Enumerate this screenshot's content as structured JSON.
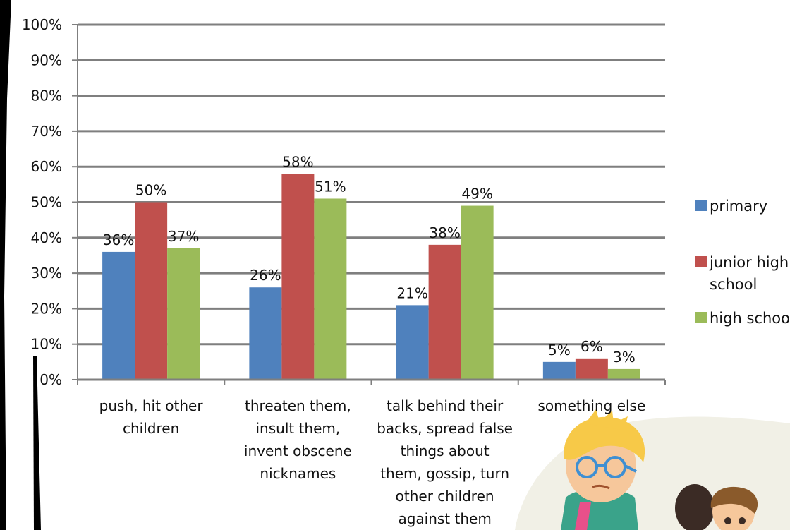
{
  "chart_data": {
    "type": "bar",
    "title": "",
    "xlabel": "",
    "ylabel": "",
    "ylim": [
      0,
      100
    ],
    "y_ticks": [
      0,
      10,
      20,
      30,
      40,
      50,
      60,
      70,
      80,
      90,
      100
    ],
    "y_tick_format": "percent",
    "grid": true,
    "legend_position": "right",
    "categories": [
      [
        "push, hit other",
        "children"
      ],
      [
        "threaten them,",
        "insult them,",
        "invent obscene",
        "nicknames"
      ],
      [
        "talk behind their",
        "backs, spread false",
        "things about",
        "them, gossip, turn",
        "other children",
        "against them"
      ],
      [
        "something else"
      ]
    ],
    "series": [
      {
        "name": "primary",
        "color": "#4f81bd",
        "values": [
          36,
          26,
          21,
          5
        ],
        "labels": [
          "36%",
          "26%",
          "21%",
          "5%"
        ]
      },
      {
        "name": "junior high school",
        "legend_lines": [
          "junior high",
          "school"
        ],
        "color": "#c0504d",
        "values": [
          50,
          58,
          38,
          6
        ],
        "labels": [
          "50%",
          "58%",
          "38%",
          "6%"
        ]
      },
      {
        "name": "high school",
        "legend_lines": [
          "high school"
        ],
        "color": "#9bbb59",
        "values": [
          37,
          51,
          49,
          3
        ],
        "labels": [
          "37%",
          "51%",
          "49%",
          "3%"
        ]
      }
    ]
  },
  "decor": {
    "illustration": "cartoon-children",
    "colors": {
      "background_blob": "#f1f0e6",
      "skin": "#f6c79b",
      "hair_blond": "#f7c948",
      "glasses": "#3f8fd2",
      "hair_dark": "#3b2b25",
      "hair_brown": "#8a5a2b"
    }
  }
}
